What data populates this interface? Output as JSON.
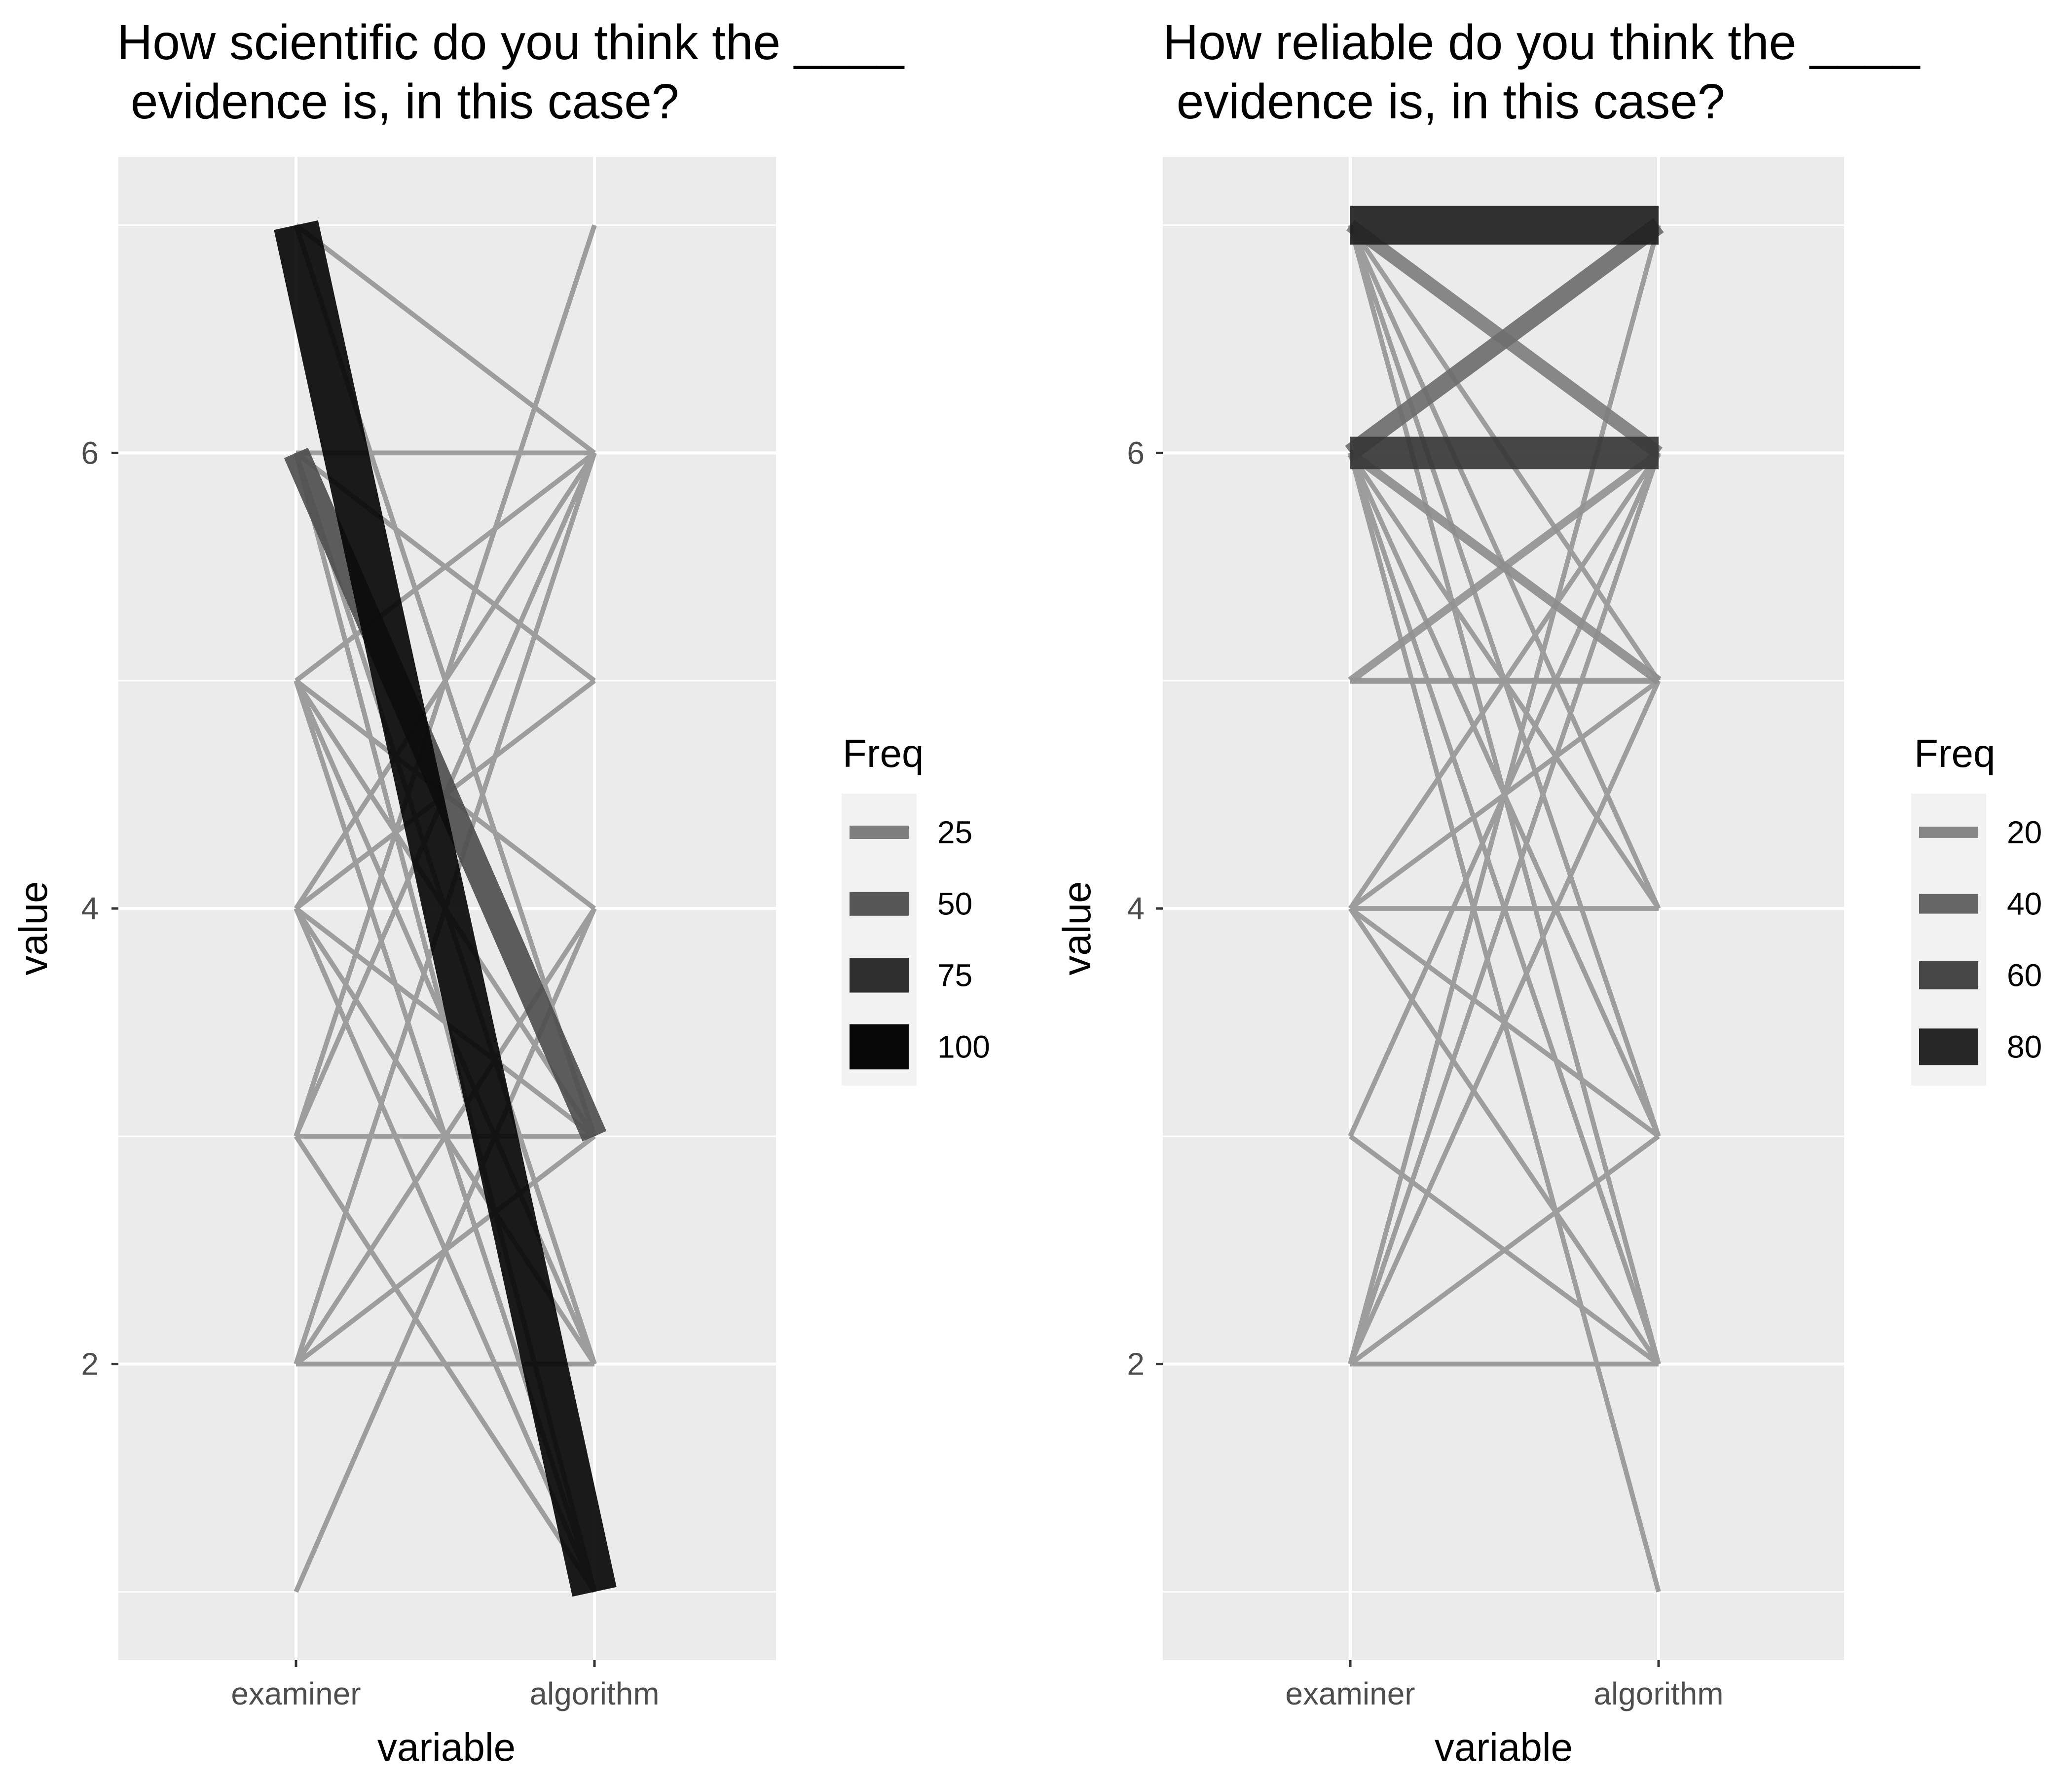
{
  "chart_data": [
    {
      "type": "line",
      "title_lines": [
        "How scientific do you think the ____",
        " evidence is, in this case?"
      ],
      "xlabel": "variable",
      "ylabel": "value",
      "categories": [
        "examiner",
        "algorithm"
      ],
      "ylim": [
        0.7,
        7.3
      ],
      "yticks": [
        2,
        4,
        6
      ],
      "grid": true,
      "legend": {
        "title": "Freq",
        "placement": "right",
        "entries": [
          {
            "label": "25",
            "freq": 25
          },
          {
            "label": "50",
            "freq": 50
          },
          {
            "label": "75",
            "freq": 75
          },
          {
            "label": "100",
            "freq": 100
          }
        ]
      },
      "segments": [
        {
          "from": 7,
          "to": 1,
          "freq": 100
        },
        {
          "from": 6,
          "to": 3,
          "freq": 55
        },
        {
          "from": 7,
          "to": 3,
          "freq": 5
        },
        {
          "from": 7,
          "to": 6,
          "freq": 5
        },
        {
          "from": 6,
          "to": 6,
          "freq": 5
        },
        {
          "from": 6,
          "to": 5,
          "freq": 5
        },
        {
          "from": 6,
          "to": 2,
          "freq": 5
        },
        {
          "from": 6,
          "to": 1,
          "freq": 5
        },
        {
          "from": 5,
          "to": 6,
          "freq": 5
        },
        {
          "from": 5,
          "to": 4,
          "freq": 5
        },
        {
          "from": 5,
          "to": 3,
          "freq": 5
        },
        {
          "from": 5,
          "to": 2,
          "freq": 5
        },
        {
          "from": 5,
          "to": 1,
          "freq": 5
        },
        {
          "from": 4,
          "to": 6,
          "freq": 5
        },
        {
          "from": 4,
          "to": 5,
          "freq": 5
        },
        {
          "from": 4,
          "to": 3,
          "freq": 5
        },
        {
          "from": 4,
          "to": 2,
          "freq": 5
        },
        {
          "from": 4,
          "to": 1,
          "freq": 5
        },
        {
          "from": 3,
          "to": 7,
          "freq": 5
        },
        {
          "from": 3,
          "to": 6,
          "freq": 5
        },
        {
          "from": 3,
          "to": 3,
          "freq": 5
        },
        {
          "from": 3,
          "to": 1,
          "freq": 5
        },
        {
          "from": 2,
          "to": 6,
          "freq": 5
        },
        {
          "from": 2,
          "to": 4,
          "freq": 5
        },
        {
          "from": 2,
          "to": 3,
          "freq": 5
        },
        {
          "from": 2,
          "to": 2,
          "freq": 5
        },
        {
          "from": 1,
          "to": 4,
          "freq": 5
        }
      ]
    },
    {
      "type": "line",
      "title_lines": [
        "How reliable do you think the ____",
        " evidence is, in this case?"
      ],
      "xlabel": "variable",
      "ylabel": "value",
      "categories": [
        "examiner",
        "algorithm"
      ],
      "ylim": [
        0.7,
        7.3
      ],
      "yticks": [
        2,
        4,
        6
      ],
      "grid": true,
      "legend": {
        "title": "Freq",
        "placement": "right",
        "entries": [
          {
            "label": "20",
            "freq": 20
          },
          {
            "label": "40",
            "freq": 40
          },
          {
            "label": "60",
            "freq": 60
          },
          {
            "label": "80",
            "freq": 80
          }
        ]
      },
      "segments": [
        {
          "from": 7,
          "to": 7,
          "freq": 85
        },
        {
          "from": 6,
          "to": 6,
          "freq": 70
        },
        {
          "from": 6,
          "to": 7,
          "freq": 35
        },
        {
          "from": 7,
          "to": 6,
          "freq": 25
        },
        {
          "from": 6,
          "to": 5,
          "freq": 15
        },
        {
          "from": 5,
          "to": 6,
          "freq": 12
        },
        {
          "from": 5,
          "to": 5,
          "freq": 8
        },
        {
          "from": 7,
          "to": 5,
          "freq": 5
        },
        {
          "from": 7,
          "to": 4,
          "freq": 5
        },
        {
          "from": 7,
          "to": 3,
          "freq": 5
        },
        {
          "from": 7,
          "to": 2,
          "freq": 5
        },
        {
          "from": 6,
          "to": 4,
          "freq": 5
        },
        {
          "from": 6,
          "to": 3,
          "freq": 5
        },
        {
          "from": 6,
          "to": 2,
          "freq": 5
        },
        {
          "from": 6,
          "to": 1,
          "freq": 5
        },
        {
          "from": 4,
          "to": 6,
          "freq": 5
        },
        {
          "from": 4,
          "to": 5,
          "freq": 5
        },
        {
          "from": 4,
          "to": 4,
          "freq": 5
        },
        {
          "from": 4,
          "to": 3,
          "freq": 5
        },
        {
          "from": 4,
          "to": 2,
          "freq": 5
        },
        {
          "from": 3,
          "to": 6,
          "freq": 5
        },
        {
          "from": 3,
          "to": 2,
          "freq": 5
        },
        {
          "from": 2,
          "to": 7,
          "freq": 5
        },
        {
          "from": 2,
          "to": 6,
          "freq": 5
        },
        {
          "from": 2,
          "to": 5,
          "freq": 5
        },
        {
          "from": 2,
          "to": 3,
          "freq": 5
        },
        {
          "from": 2,
          "to": 2,
          "freq": 5
        }
      ]
    }
  ]
}
